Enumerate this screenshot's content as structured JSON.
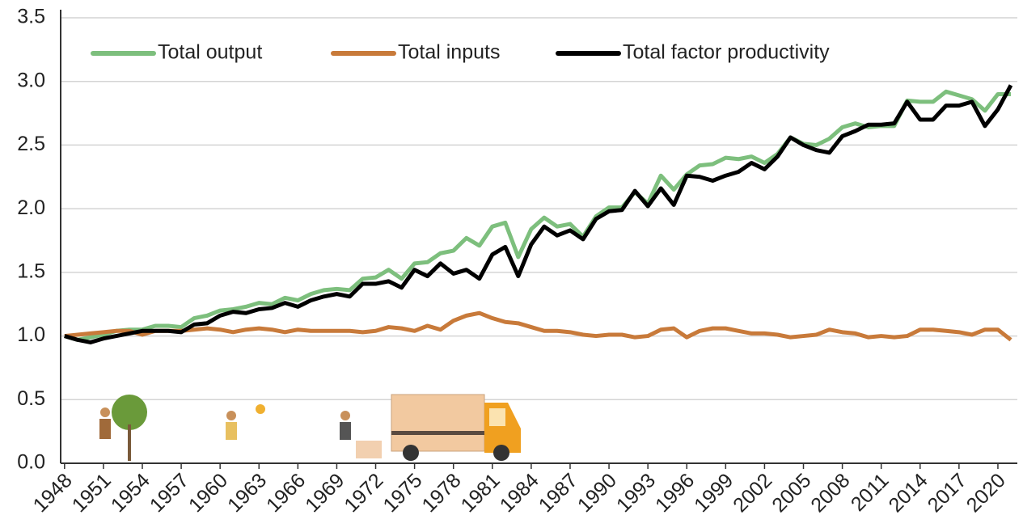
{
  "chart_data": {
    "type": "line",
    "x": [
      1948,
      1949,
      1950,
      1951,
      1952,
      1953,
      1954,
      1955,
      1956,
      1957,
      1958,
      1959,
      1960,
      1961,
      1962,
      1963,
      1964,
      1965,
      1966,
      1967,
      1968,
      1969,
      1970,
      1971,
      1972,
      1973,
      1974,
      1975,
      1976,
      1977,
      1978,
      1979,
      1980,
      1981,
      1982,
      1983,
      1984,
      1985,
      1986,
      1987,
      1988,
      1989,
      1990,
      1991,
      1992,
      1993,
      1994,
      1995,
      1996,
      1997,
      1998,
      1999,
      2000,
      2001,
      2002,
      2003,
      2004,
      2005,
      2006,
      2007,
      2008,
      2009,
      2010,
      2011,
      2012,
      2013,
      2014,
      2015,
      2016,
      2017,
      2018,
      2019,
      2020,
      2021
    ],
    "series": [
      {
        "name": "Total output",
        "color": "#7dbf7d",
        "values": [
          1.0,
          0.97,
          0.99,
          1.01,
          1.04,
          1.05,
          1.05,
          1.08,
          1.08,
          1.07,
          1.14,
          1.16,
          1.2,
          1.21,
          1.23,
          1.26,
          1.25,
          1.3,
          1.28,
          1.33,
          1.36,
          1.37,
          1.36,
          1.45,
          1.46,
          1.52,
          1.45,
          1.57,
          1.58,
          1.65,
          1.67,
          1.77,
          1.71,
          1.86,
          1.89,
          1.62,
          1.84,
          1.93,
          1.86,
          1.88,
          1.78,
          1.94,
          2.01,
          2.01,
          2.13,
          2.04,
          2.26,
          2.15,
          2.27,
          2.34,
          2.35,
          2.4,
          2.39,
          2.41,
          2.36,
          2.43,
          2.56,
          2.51,
          2.5,
          2.55,
          2.64,
          2.67,
          2.64,
          2.65,
          2.65,
          2.85,
          2.84,
          2.84,
          2.92,
          2.89,
          2.86,
          2.77,
          2.9,
          2.9
        ]
      },
      {
        "name": "Total inputs",
        "color": "#c87a3a",
        "values": [
          1.0,
          1.01,
          1.02,
          1.03,
          1.04,
          1.04,
          1.01,
          1.04,
          1.04,
          1.04,
          1.05,
          1.06,
          1.05,
          1.03,
          1.05,
          1.06,
          1.05,
          1.03,
          1.05,
          1.04,
          1.04,
          1.04,
          1.04,
          1.03,
          1.04,
          1.07,
          1.06,
          1.04,
          1.08,
          1.05,
          1.12,
          1.16,
          1.18,
          1.14,
          1.11,
          1.1,
          1.07,
          1.04,
          1.04,
          1.03,
          1.01,
          1.0,
          1.01,
          1.01,
          0.99,
          1.0,
          1.05,
          1.06,
          0.99,
          1.04,
          1.06,
          1.06,
          1.04,
          1.02,
          1.02,
          1.01,
          0.99,
          1.0,
          1.01,
          1.05,
          1.03,
          1.02,
          0.99,
          1.0,
          0.99,
          1.0,
          1.05,
          1.05,
          1.04,
          1.03,
          1.01,
          1.05,
          1.05,
          0.97
        ]
      },
      {
        "name": "Total factor productivity",
        "color": "#000000",
        "values": [
          1.0,
          0.97,
          0.95,
          0.98,
          1.0,
          1.02,
          1.04,
          1.04,
          1.04,
          1.03,
          1.09,
          1.1,
          1.16,
          1.19,
          1.18,
          1.21,
          1.22,
          1.26,
          1.23,
          1.28,
          1.31,
          1.33,
          1.31,
          1.41,
          1.41,
          1.43,
          1.38,
          1.52,
          1.47,
          1.57,
          1.49,
          1.52,
          1.45,
          1.64,
          1.7,
          1.47,
          1.72,
          1.86,
          1.79,
          1.83,
          1.76,
          1.92,
          1.98,
          1.99,
          2.14,
          2.02,
          2.16,
          2.03,
          2.26,
          2.25,
          2.22,
          2.26,
          2.29,
          2.36,
          2.31,
          2.41,
          2.56,
          2.5,
          2.46,
          2.44,
          2.57,
          2.61,
          2.66,
          2.66,
          2.67,
          2.84,
          2.7,
          2.7,
          2.81,
          2.81,
          2.84,
          2.65,
          2.78,
          2.97
        ]
      }
    ],
    "xlim": [
      1947.7,
      2021.5
    ],
    "xticks": [
      1948,
      1951,
      1954,
      1957,
      1960,
      1963,
      1966,
      1969,
      1972,
      1975,
      1978,
      1981,
      1984,
      1987,
      1990,
      1993,
      1996,
      1999,
      2002,
      2005,
      2008,
      2011,
      2014,
      2017,
      2020
    ],
    "ylim": [
      0,
      3.5
    ],
    "yticks": [
      {
        "value": 0,
        "label": "0.0"
      },
      0.5,
      {
        "value": 1,
        "label": "1.0"
      },
      1.5,
      {
        "value": 2,
        "label": "2.0"
      },
      2.5,
      {
        "value": 3,
        "label": "3.0"
      },
      3.5
    ],
    "grid": true,
    "legend": "top"
  }
}
